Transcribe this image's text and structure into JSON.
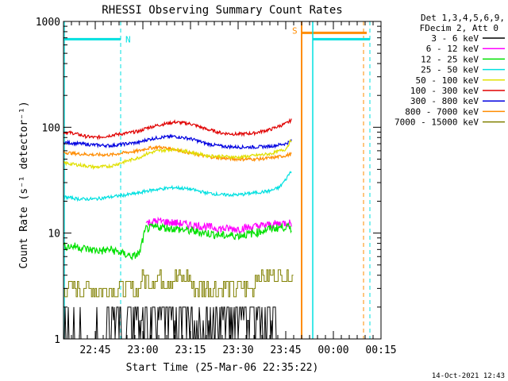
{
  "chart_data": {
    "type": "line",
    "title": "RHESSI Observing Summary Count Rates",
    "xlabel": "Start Time (25-Mar-06 22:35:22)",
    "ylabel": "Count Rate (s⁻¹ detector⁻¹)",
    "yscale": "log",
    "ylim": [
      1,
      1000
    ],
    "xlim_minutes_after_22_35": [
      0,
      100
    ],
    "x_ticks": [
      "22:45",
      "23:00",
      "23:15",
      "23:30",
      "23:45",
      "00:00",
      "00:15"
    ],
    "x_tick_minutes": [
      10,
      25,
      40,
      55,
      70,
      85,
      100
    ],
    "y_ticks": [
      "1",
      "10",
      "100",
      "1000"
    ],
    "y_tick_values": [
      1,
      10,
      100,
      1000
    ],
    "legend": {
      "placement": "right",
      "header": [
        "Det 1,3,4,5,6,9,",
        "FDecim 2, Att 0"
      ],
      "entries": [
        {
          "label": "3 - 6 keV",
          "color": "#000000"
        },
        {
          "label": "6 - 12 keV",
          "color": "#ff00ff"
        },
        {
          "label": "12 - 25 keV",
          "color": "#00e000"
        },
        {
          "label": "25 - 50 keV",
          "color": "#00e0e0"
        },
        {
          "label": "50 - 100 keV",
          "color": "#e0e000"
        },
        {
          "label": "100 - 300 keV",
          "color": "#e00000"
        },
        {
          "label": "300 - 800 keV",
          "color": "#0000e0"
        },
        {
          "label": "800 - 7000 keV",
          "color": "#ff8c00"
        },
        {
          "label": "7000 - 15000 keV",
          "color": "#808000"
        }
      ]
    },
    "series": [
      {
        "color": "#e00000",
        "minutes": [
          0,
          3,
          7,
          10,
          13,
          16,
          20,
          24,
          26,
          30,
          35,
          40,
          45,
          50,
          55,
          60,
          65,
          70,
          72
        ],
        "values": [
          90,
          88,
          82,
          80,
          82,
          85,
          88,
          92,
          98,
          105,
          112,
          108,
          96,
          88,
          86,
          88,
          95,
          108,
          118
        ]
      },
      {
        "color": "#0000e0",
        "minutes": [
          0,
          5,
          10,
          15,
          20,
          24,
          26,
          30,
          35,
          40,
          45,
          50,
          55,
          60,
          65,
          70,
          72
        ],
        "values": [
          72,
          70,
          68,
          67,
          70,
          72,
          76,
          80,
          82,
          78,
          70,
          66,
          65,
          65,
          66,
          70,
          75
        ]
      },
      {
        "color": "#ff8c00",
        "minutes": [
          0,
          5,
          10,
          15,
          20,
          24,
          26,
          30,
          35,
          40,
          45,
          50,
          55,
          60,
          65,
          70,
          72
        ],
        "values": [
          58,
          56,
          55,
          55,
          58,
          60,
          63,
          65,
          62,
          57,
          53,
          51,
          50,
          50,
          51,
          54,
          56
        ]
      },
      {
        "color": "#e0e000",
        "minutes": [
          0,
          5,
          10,
          15,
          20,
          24,
          26,
          30,
          35,
          40,
          45,
          50,
          55,
          60,
          65,
          70,
          72
        ],
        "values": [
          46,
          44,
          42,
          43,
          48,
          52,
          56,
          60,
          62,
          58,
          54,
          53,
          52,
          54,
          56,
          62,
          78
        ]
      },
      {
        "color": "#00e0e0",
        "minutes": [
          0,
          5,
          10,
          15,
          20,
          24,
          26,
          30,
          35,
          40,
          45,
          50,
          55,
          60,
          65,
          68,
          70,
          72
        ],
        "values": [
          22,
          21,
          21,
          22,
          23,
          24,
          25,
          26,
          27,
          26,
          24,
          23,
          23,
          24,
          25,
          27,
          32,
          40
        ]
      },
      {
        "color": "#ff00ff",
        "minutes": [
          26,
          30,
          35,
          40,
          45,
          50,
          55,
          60,
          65,
          70,
          72
        ],
        "values": [
          12.5,
          13,
          12.5,
          12,
          11.5,
          11,
          11,
          11.5,
          12,
          12.5,
          12.5
        ]
      },
      {
        "color": "#00e000",
        "minutes": [
          0,
          4,
          8,
          12,
          15,
          18,
          22,
          24,
          26,
          30,
          35,
          40,
          45,
          50,
          55,
          60,
          65,
          70,
          72
        ],
        "values": [
          7.5,
          7.5,
          7.0,
          6.8,
          7.0,
          6.5,
          6.0,
          6.5,
          11,
          11.5,
          11,
          10.5,
          10,
          9.5,
          9.5,
          10,
          11,
          11.5,
          11
        ]
      }
    ],
    "annotations": [
      {
        "label": "N",
        "color": "#00e0e0"
      },
      {
        "label": "S",
        "color": "#ff8c00"
      }
    ]
  },
  "footer": {
    "date": "14-Oct-2021 12:43"
  }
}
